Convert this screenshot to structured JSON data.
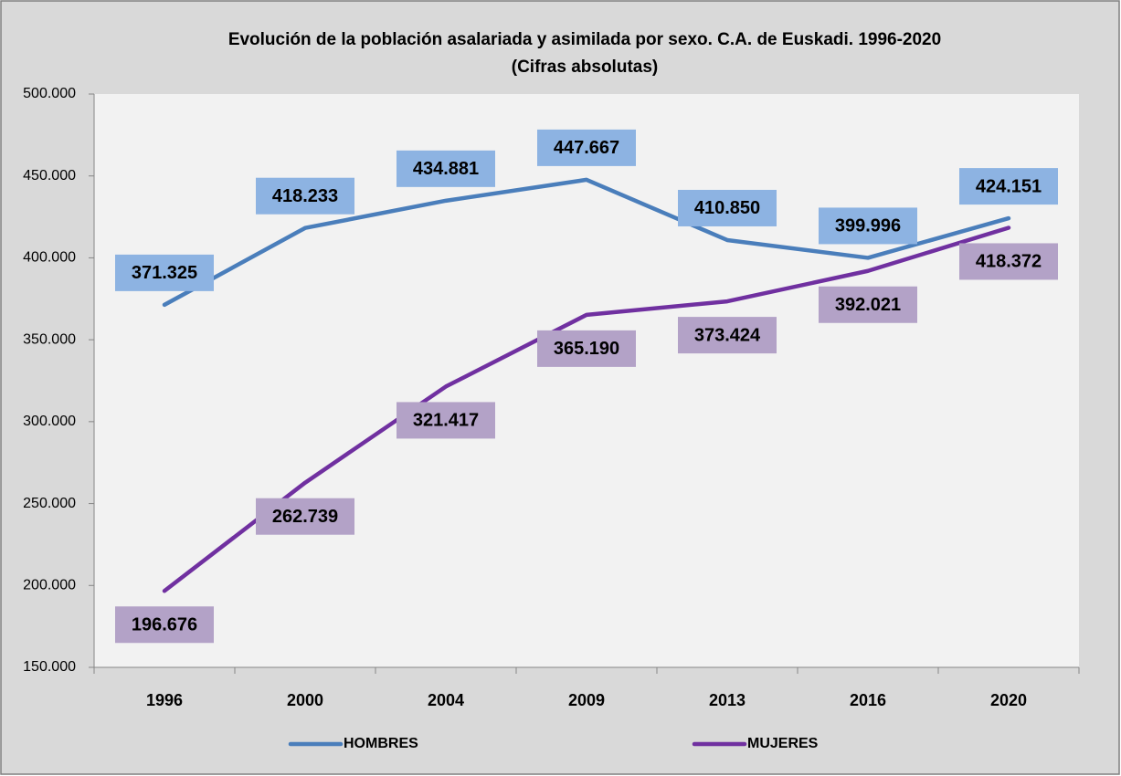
{
  "chart_data": {
    "type": "line",
    "title": "Evolución de la población asalariada y asimilada por sexo. C.A. de Euskadi. 1996-2020",
    "subtitle": "(Cifras absolutas)",
    "categories": [
      "1996",
      "2000",
      "2004",
      "2009",
      "2013",
      "2016",
      "2020"
    ],
    "series": [
      {
        "name": "HOMBRES",
        "color": "#4a7ebb",
        "label_color": "#8db3e2",
        "values": [
          371325,
          418233,
          434881,
          447667,
          410850,
          399996,
          424151
        ],
        "value_labels": [
          "371.325",
          "418.233",
          "434.881",
          "447.667",
          "410.850",
          "399.996",
          "424.151"
        ]
      },
      {
        "name": "MUJERES",
        "color": "#7030a0",
        "label_color": "#b3a2c7",
        "values": [
          196676,
          262739,
          321417,
          365190,
          373424,
          392021,
          418372
        ],
        "value_labels": [
          "196.676",
          "262.739",
          "321.417",
          "365.190",
          "373.424",
          "392.021",
          "418.372"
        ]
      }
    ],
    "ylim": [
      150000,
      500000
    ],
    "yticks": [
      {
        "value": 150000,
        "label": "150.000"
      },
      {
        "value": 200000,
        "label": "200.000"
      },
      {
        "value": 250000,
        "label": "250.000"
      },
      {
        "value": 300000,
        "label": "300.000"
      },
      {
        "value": 350000,
        "label": "350.000"
      },
      {
        "value": 400000,
        "label": "400.000"
      },
      {
        "value": 450000,
        "label": "450.000"
      },
      {
        "value": 500000,
        "label": "500.000"
      }
    ],
    "grid": false,
    "legend": "bottom"
  }
}
